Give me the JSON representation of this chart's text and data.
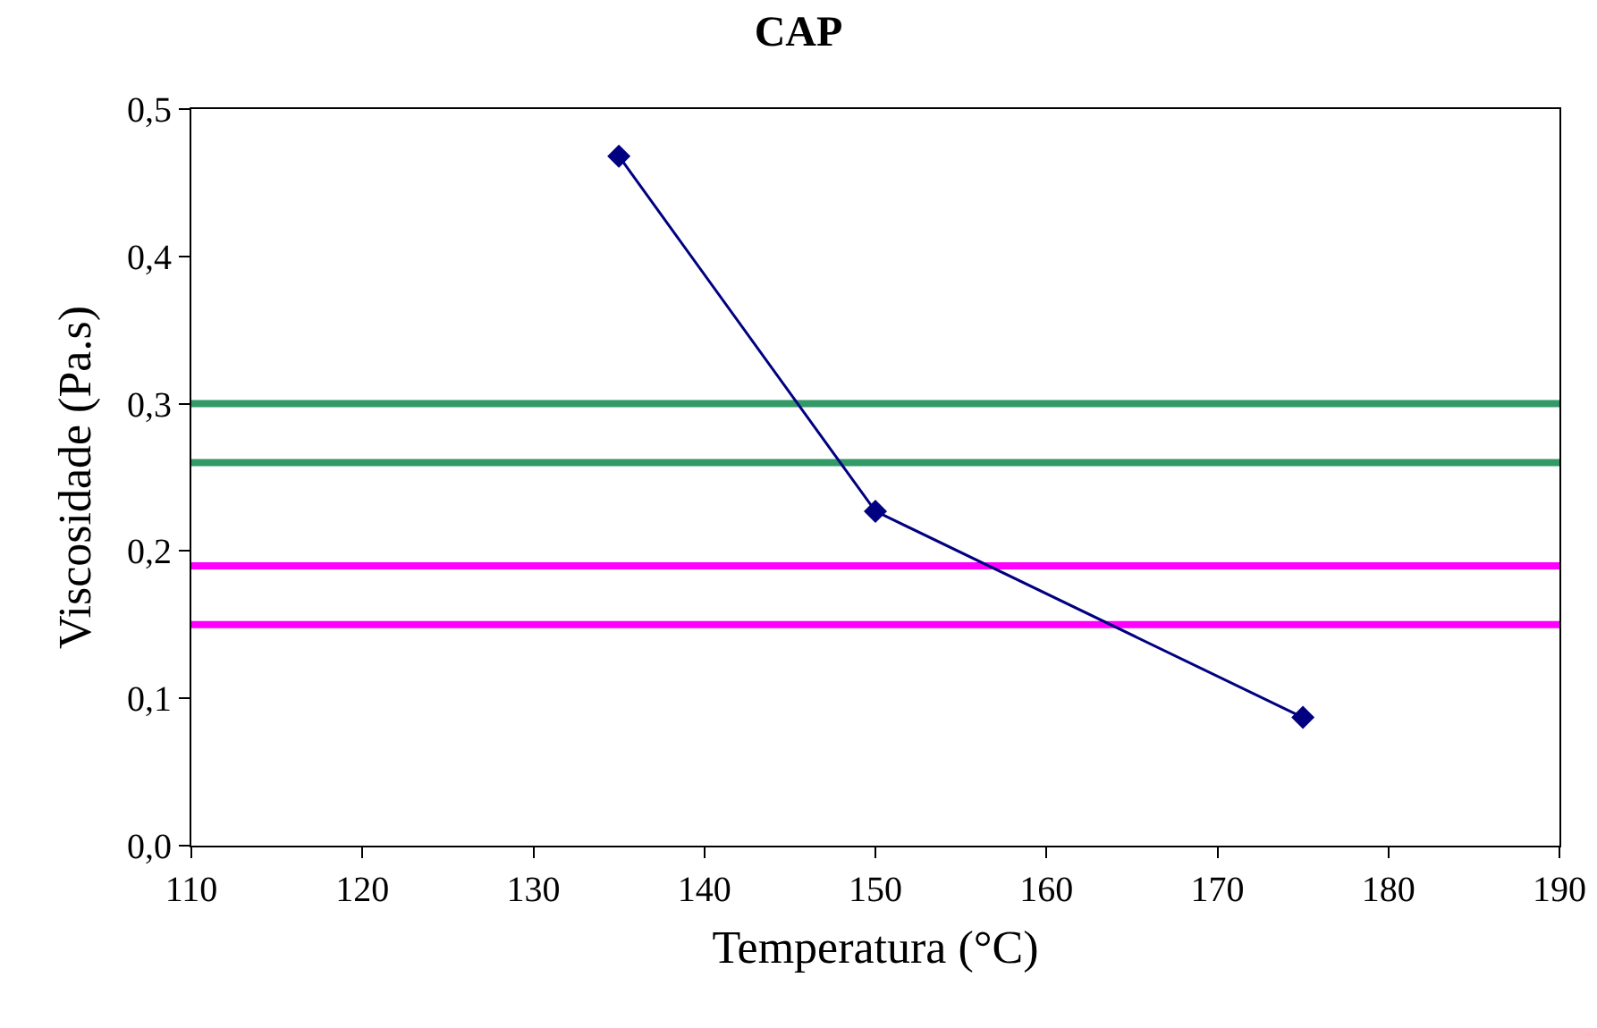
{
  "chart_data": {
    "type": "line",
    "title": "CAP",
    "xlabel": "Temperatura (°C)",
    "ylabel": "Viscosidade (Pa.s)",
    "x": [
      135,
      150,
      175
    ],
    "series": [
      {
        "color": "#000080",
        "values": [
          0.468,
          0.227,
          0.087
        ]
      }
    ],
    "xlim": [
      110,
      190
    ],
    "xticks": [
      110,
      120,
      130,
      140,
      150,
      160,
      170,
      180,
      190
    ],
    "ylim": [
      0,
      0.5
    ],
    "yticks": [
      {
        "value": 0,
        "label": "0,0"
      },
      {
        "value": 0.1,
        "label": "0,1"
      },
      {
        "value": 0.2,
        "label": "0,2"
      },
      {
        "value": 0.3,
        "label": "0,3"
      },
      {
        "value": 0.4,
        "label": "0,4"
      },
      {
        "value": 0.5,
        "label": "0,5"
      }
    ],
    "ref_lines": [
      {
        "axis": "y",
        "value": 0.3,
        "color": "#339966"
      },
      {
        "axis": "y",
        "value": 0.26,
        "color": "#339966"
      },
      {
        "axis": "y",
        "value": 0.19,
        "color": "#ff00ff"
      },
      {
        "axis": "y",
        "value": 0.15,
        "color": "#ff00ff"
      }
    ],
    "marker": "diamond",
    "line_style": "solid"
  }
}
